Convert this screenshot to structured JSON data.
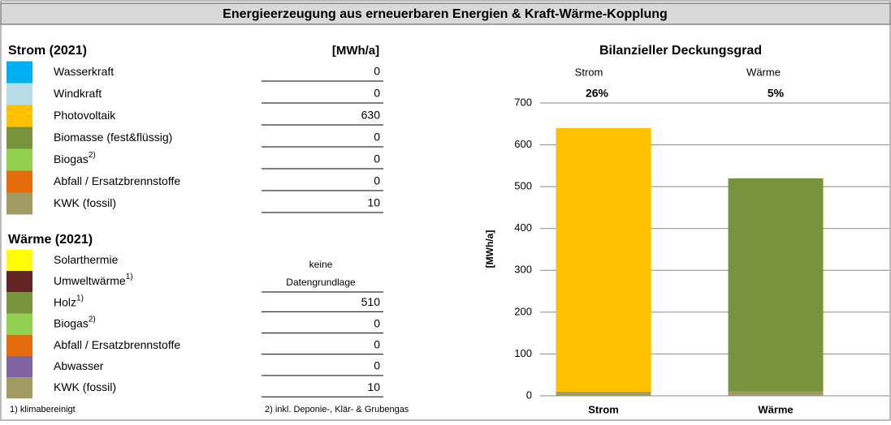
{
  "header": {
    "title": "Energieerzeugung aus erneuerbaren Energien & Kraft-Wärme-Kopplung"
  },
  "strom": {
    "title": "Strom (2021)",
    "unit": "[MWh/a]",
    "rows": [
      {
        "label": "Wasserkraft",
        "color": "#00b0f0",
        "value": 0
      },
      {
        "label": "Windkraft",
        "color": "#b7dee8",
        "value": 0
      },
      {
        "label": "Photovoltaik",
        "color": "#ffc000",
        "value": 630
      },
      {
        "label": "Biomasse (fest&flüssig)",
        "color": "#77933c",
        "value": 0
      },
      {
        "label": "Biogas",
        "note": "2)",
        "color": "#92d050",
        "value": 0
      },
      {
        "label": "Abfall / Ersatzbrennstoffe",
        "color": "#e46c0a",
        "value": 0
      },
      {
        "label": "KWK (fossil)",
        "color": "#a09a63",
        "value": 10
      }
    ]
  },
  "waerme": {
    "title": "Wärme (2021)",
    "no_data": [
      "keine",
      "Datengrundlage"
    ],
    "rows": [
      {
        "label": "Solarthermie",
        "color": "#ffff00"
      },
      {
        "label": "Umweltwärme",
        "note": "1)",
        "color": "#632523"
      },
      {
        "label": "Holz",
        "note": "1)",
        "color": "#77933c",
        "value": 510
      },
      {
        "label": "Biogas",
        "note": "2)",
        "color": "#92d050",
        "value": 0
      },
      {
        "label": "Abfall / Ersatzbrennstoffe",
        "color": "#e46c0a",
        "value": 0
      },
      {
        "label": "Abwasser",
        "color": "#8064a2",
        "value": 0
      },
      {
        "label": "KWK (fossil)",
        "color": "#a09a63",
        "value": 10
      }
    ]
  },
  "footnotes": [
    "1) klimabereinigt",
    "2) inkl. Deponie-, Klär- & Grubengas"
  ],
  "chart_data": {
    "type": "stacked_bar",
    "title": "Bilanzieller Deckungsgrad",
    "ylabel": "[MWh/a]",
    "categories": [
      "Strom",
      "Wärme"
    ],
    "annotations": [
      "26%",
      "5%"
    ],
    "series": [
      {
        "color": "#a09a63",
        "values": [
          10,
          10
        ]
      },
      {
        "color": "#ffc000",
        "values": [
          630,
          0
        ]
      },
      {
        "color": "#77933c",
        "values": [
          0,
          510
        ]
      }
    ],
    "ylim": [
      0,
      700
    ],
    "yticks": [
      0,
      100,
      200,
      300,
      400,
      500,
      600,
      700
    ],
    "grid": true
  }
}
